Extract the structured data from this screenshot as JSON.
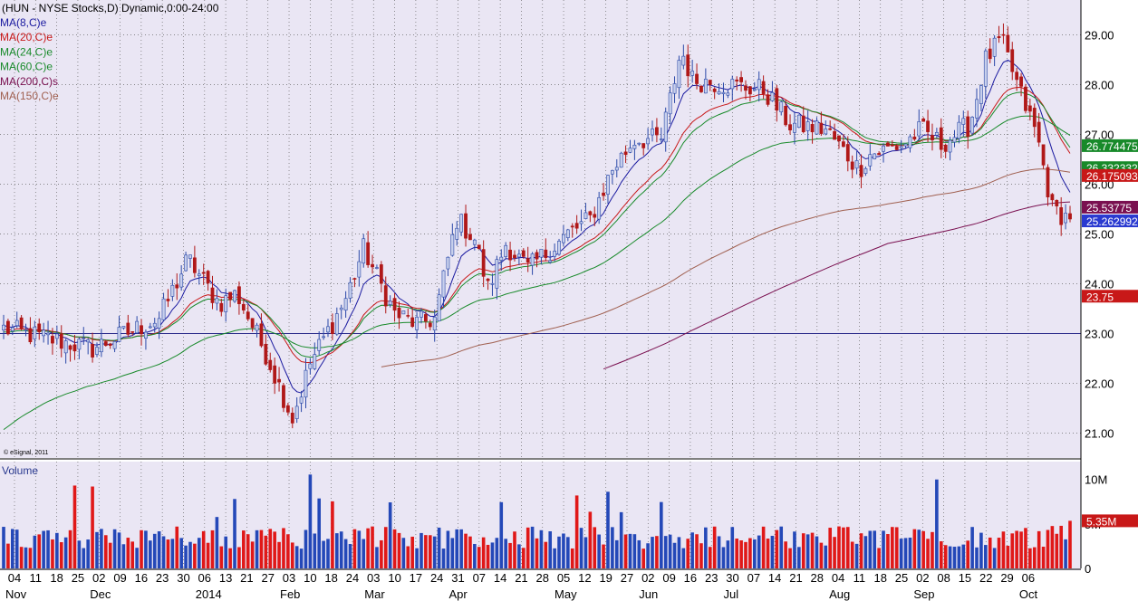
{
  "header": {
    "title": "(HUN - NYSE Stocks,D) Dynamic,0:00-24:00",
    "watermark": "© eSignal, 2011",
    "volume_label": "Volume"
  },
  "legend": [
    {
      "label": "MA(8,C)e",
      "color": "#1a1aa0"
    },
    {
      "label": "MA(20,C)e",
      "color": "#c81818"
    },
    {
      "label": "MA(24,C)e",
      "color": "#188a2a"
    },
    {
      "label": "MA(60,C)e",
      "color": "#188a2a"
    },
    {
      "label": "MA(200,C)s",
      "color": "#7a1050"
    },
    {
      "label": "MA(150,C)e",
      "color": "#a06050"
    }
  ],
  "colors": {
    "panel_bg": "#eae6f4",
    "up": "#2a48a8",
    "down": "#b01818",
    "up_volume": "#2448b8",
    "down_volume": "#e01818",
    "grid": "#666666"
  },
  "chart_data": {
    "type": "candlestick",
    "ylim": [
      20.5,
      29.7
    ],
    "yticks": [
      "29.00",
      "28.00",
      "27.00",
      "26.00",
      "25.00",
      "24.00",
      "23.00",
      "22.00",
      "21.00"
    ],
    "horizontal_line": 23.0,
    "x_dates": [
      "04",
      "11",
      "18",
      "25",
      "02",
      "09",
      "16",
      "23",
      "30",
      "06",
      "13",
      "21",
      "27",
      "03",
      "10",
      "18",
      "24",
      "03",
      "10",
      "17",
      "24",
      "31",
      "07",
      "14",
      "21",
      "28",
      "05",
      "12",
      "19",
      "27",
      "02",
      "09",
      "16",
      "23",
      "30",
      "07",
      "14",
      "21",
      "28",
      "04",
      "11",
      "18",
      "25",
      "02",
      "08",
      "15",
      "22",
      "29",
      "06"
    ],
    "months": [
      "Nov",
      "Dec",
      "2014",
      "Feb",
      "Mar",
      "Apr",
      "May",
      "Jun",
      "Jul",
      "Aug",
      "Sep",
      "Oct"
    ],
    "month_anchors": [
      0,
      4,
      9,
      13,
      17,
      21,
      26,
      30,
      34,
      39,
      43,
      48
    ],
    "anchors": [
      [
        0,
        23.1
      ],
      [
        4,
        22.7
      ],
      [
        7,
        23.3
      ],
      [
        8.3,
        24.5
      ],
      [
        9.7,
        23.6
      ],
      [
        10.5,
        23.8
      ],
      [
        11.8,
        22.6
      ],
      [
        13,
        21.3
      ],
      [
        13.8,
        22.4
      ],
      [
        15.4,
        23.7
      ],
      [
        16.2,
        24.7
      ],
      [
        17.6,
        23.4
      ],
      [
        18.6,
        23.2
      ],
      [
        19.4,
        23.3
      ],
      [
        20.4,
        25.3
      ],
      [
        21.2,
        24.9
      ],
      [
        21.8,
        23.9
      ],
      [
        22.6,
        24.8
      ],
      [
        23.6,
        24.3
      ],
      [
        25.4,
        25.0
      ],
      [
        26.4,
        25.3
      ],
      [
        27.4,
        26.3
      ],
      [
        28.4,
        26.9
      ],
      [
        29.6,
        26.9
      ],
      [
        30.5,
        28.7
      ],
      [
        31.0,
        28.1
      ],
      [
        32.6,
        28.0
      ],
      [
        34.2,
        27.9
      ],
      [
        35.4,
        27.2
      ],
      [
        37.0,
        27.1
      ],
      [
        38.5,
        26.3
      ],
      [
        39.0,
        26.6
      ],
      [
        40.5,
        26.8
      ],
      [
        41.3,
        27.1
      ],
      [
        42.2,
        26.8
      ],
      [
        43.5,
        27.2
      ],
      [
        44.2,
        28.5
      ],
      [
        44.9,
        28.9
      ],
      [
        45.7,
        27.9
      ],
      [
        46.5,
        27.0
      ],
      [
        47.2,
        25.5
      ],
      [
        48.0,
        25.3
      ],
      [
        48.4,
        23.75
      ]
    ],
    "last_price": "23.75",
    "price_labels": [
      {
        "value": 26.774475,
        "label": "26.774475",
        "color": "#188a2a"
      },
      {
        "value": 26.332332,
        "label": "26.332332",
        "color": "#188a2a"
      },
      {
        "value": 26.175093,
        "label": "26.175093",
        "color": "#c81818"
      },
      {
        "value": 25.53775,
        "label": "25.53775",
        "color": "#7a1050"
      },
      {
        "value": 25.262992,
        "label": "25.262992",
        "color": "#2a3ad0"
      },
      {
        "value": 23.75,
        "label": "23.75",
        "color": "#c81818"
      }
    ],
    "volume": {
      "ylim": [
        0,
        12
      ],
      "yticks": [
        {
          "v": 10,
          "label": "10M"
        },
        {
          "v": 5,
          "label": "5M"
        },
        {
          "v": 0,
          "label": "0"
        }
      ],
      "last_label": "5.35M"
    }
  }
}
